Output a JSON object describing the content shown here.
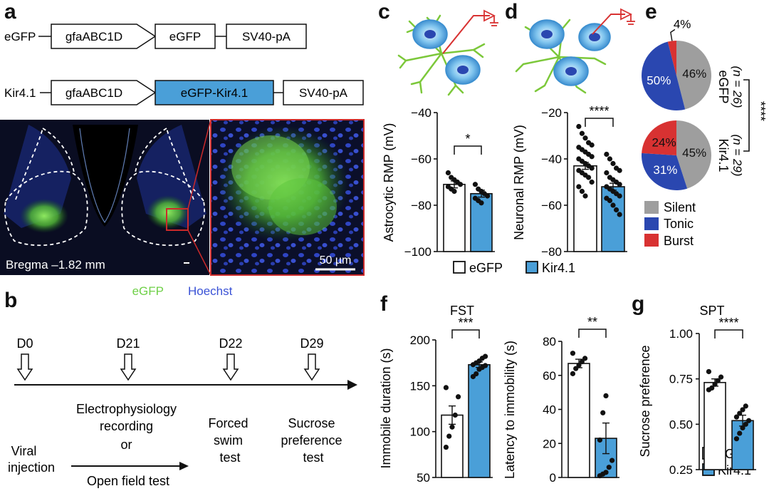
{
  "panel_labels": {
    "a": "a",
    "b": "b",
    "c": "c",
    "d": "d",
    "e": "e",
    "f": "f",
    "g": "g"
  },
  "constructs": [
    {
      "name": "eGFP",
      "promoter": "gfaABC1D",
      "gene": "eGFP",
      "polya": "SV40-pA"
    },
    {
      "name": "Kir4.1",
      "promoter": "gfaABC1D",
      "gene": "eGFP-Kir4.1",
      "polya": "SV40-pA"
    }
  ],
  "histology": {
    "bregma_label": "Bregma –1.82 mm",
    "scale_label": "50 µm",
    "stain_egfp": "eGFP",
    "stain_hoechst": "Hoechst",
    "colors": {
      "egfp": "#6fd048",
      "hoechst": "#3a52d6",
      "frame": "#cc2a2a"
    }
  },
  "timeline": {
    "days": [
      "D0",
      "D21",
      "D22",
      "D29"
    ],
    "steps": {
      "viral": [
        "Viral",
        "injection"
      ],
      "ephys": [
        "Electrophysiology",
        "recording",
        "or",
        "Open field test"
      ],
      "fst": [
        "Forced",
        "swim",
        "test"
      ],
      "spt": [
        "Sucrose",
        "preference",
        "test"
      ]
    }
  },
  "legend_groups": {
    "egfp": "eGFP",
    "kir": "Kir4.1"
  },
  "colors": {
    "kir": "#4a9fd8",
    "silent": "#9e9e9e",
    "tonic": "#2a47b0",
    "burst": "#d83232"
  },
  "chart_data": [
    {
      "id": "c",
      "type": "bar",
      "ylabel": "Astrocytic RMP (mV)",
      "ylim": [
        -100,
        -40
      ],
      "yticks": [
        -100,
        -80,
        -60,
        -40
      ],
      "categories": [
        "eGFP",
        "Kir4.1"
      ],
      "values": [
        -71,
        -75
      ],
      "sem": [
        1.5,
        1.5
      ],
      "points": [
        [
          -66,
          -68,
          -69,
          -70,
          -71,
          -72,
          -73,
          -74
        ],
        [
          -71,
          -73,
          -74,
          -75,
          -76,
          -77,
          -78,
          -79
        ]
      ],
      "significance": "*"
    },
    {
      "id": "d",
      "type": "bar",
      "ylabel": "Neuronal RMP (mV)",
      "ylim": [
        -80,
        -20
      ],
      "yticks": [
        -80,
        -60,
        -40,
        -20
      ],
      "categories": [
        "eGFP",
        "Kir4.1"
      ],
      "values": [
        -43,
        -52
      ],
      "sem": [
        1.5,
        1.5
      ],
      "points": [
        [
          -26,
          -29,
          -31,
          -33,
          -34,
          -35,
          -36,
          -37,
          -38,
          -39,
          -40,
          -41,
          -42,
          -43,
          -44,
          -45,
          -46,
          -47,
          -48,
          -50,
          -52,
          -54,
          -56
        ],
        [
          -38,
          -40,
          -42,
          -44,
          -45,
          -46,
          -48,
          -49,
          -50,
          -51,
          -52,
          -53,
          -54,
          -55,
          -56,
          -57,
          -58,
          -60,
          -62,
          -64
        ]
      ],
      "significance": "****"
    },
    {
      "id": "e",
      "type": "pie",
      "series": [
        {
          "name": "eGFP",
          "n_label": "(n = 26)",
          "values": [
            46,
            50,
            4
          ],
          "labels": [
            "46%",
            "50%",
            "4%"
          ]
        },
        {
          "name": "Kir4.1",
          "n_label": "(n = 29)",
          "values": [
            45,
            31,
            24
          ],
          "labels": [
            "45%",
            "31%",
            "24%"
          ]
        }
      ],
      "categories": [
        "Silent",
        "Tonic",
        "Burst"
      ],
      "significance": "****"
    },
    {
      "id": "f1",
      "type": "bar",
      "title": "FST",
      "ylabel": "Immobile duration (s)",
      "ylim": [
        50,
        200
      ],
      "yticks": [
        50,
        100,
        150,
        200
      ],
      "categories": [
        "eGFP",
        "Kir4.1"
      ],
      "values": [
        118,
        173
      ],
      "sem": [
        10,
        3
      ],
      "points": [
        [
          83,
          95,
          105,
          118,
          138,
          148
        ],
        [
          160,
          163,
          168,
          170,
          172,
          173,
          175,
          177,
          180,
          182
        ]
      ],
      "significance": "***"
    },
    {
      "id": "f2",
      "type": "bar",
      "ylabel": "Latency to immobility (s)",
      "ylim": [
        0,
        80
      ],
      "yticks": [
        0,
        20,
        40,
        60,
        80
      ],
      "categories": [
        "eGFP",
        "Kir4.1"
      ],
      "values": [
        67,
        23
      ],
      "sem": [
        2.5,
        9
      ],
      "points": [
        [
          61,
          64,
          66,
          68,
          70,
          73
        ],
        [
          1,
          2,
          3,
          6,
          10,
          22,
          38,
          48
        ]
      ],
      "significance": "**"
    },
    {
      "id": "g",
      "type": "bar",
      "title": "SPT",
      "ylabel": "Sucrose preference",
      "ylim": [
        0.25,
        1.0
      ],
      "yticks": [
        "0.25",
        "0.50",
        "0.75",
        "1.00"
      ],
      "categories": [
        "eGFP",
        "Kir4.1"
      ],
      "values": [
        0.73,
        0.52
      ],
      "sem": [
        0.02,
        0.03
      ],
      "points": [
        [
          0.69,
          0.7,
          0.72,
          0.74,
          0.76,
          0.79
        ],
        [
          0.42,
          0.45,
          0.48,
          0.5,
          0.52,
          0.54,
          0.56,
          0.58,
          0.6
        ]
      ],
      "significance": "****"
    }
  ]
}
